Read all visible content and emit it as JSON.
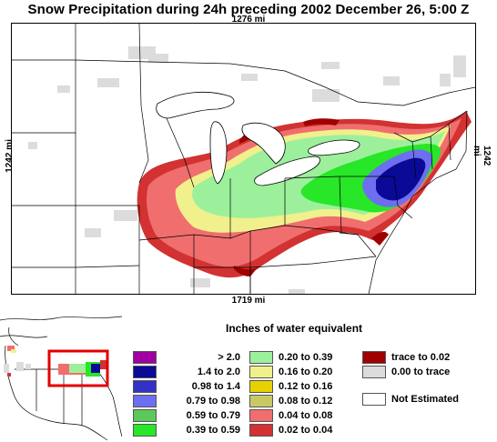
{
  "title": "Snow Precipitation during 24h preceding 2002 December 26, 5:00 Z",
  "dimensions": {
    "top": "1276 mi",
    "bottom": "1719 mi",
    "left": "1242 mi",
    "right": "1242 mi"
  },
  "legend": {
    "title": "Inches of water equivalent",
    "items": [
      {
        "label": "> 2.0",
        "color": "#a000a0"
      },
      {
        "label": "1.4 to 2.0",
        "color": "#0a0a96"
      },
      {
        "label": "0.98 to 1.4",
        "color": "#3232c8"
      },
      {
        "label": "0.79 to 0.98",
        "color": "#6e6ef0"
      },
      {
        "label": "0.59 to 0.79",
        "color": "#5ac85a"
      },
      {
        "label": "0.39 to 0.59",
        "color": "#28e628"
      },
      {
        "label": "0.20 to 0.39",
        "color": "#9cf09c"
      },
      {
        "label": "0.16 to 0.20",
        "color": "#f0f08c"
      },
      {
        "label": "0.12 to 0.16",
        "color": "#e6d200"
      },
      {
        "label": "0.08 to 0.12",
        "color": "#c8c864"
      },
      {
        "label": "0.04 to 0.08",
        "color": "#f06e6e"
      },
      {
        "label": "0.02 to 0.04",
        "color": "#d23232"
      },
      {
        "label": "trace to 0.02",
        "color": "#a00000"
      },
      {
        "label": "0.00 to trace",
        "color": "#dcdcdc"
      },
      {
        "label": "Not Estimated",
        "color": "#ffffff"
      }
    ]
  }
}
